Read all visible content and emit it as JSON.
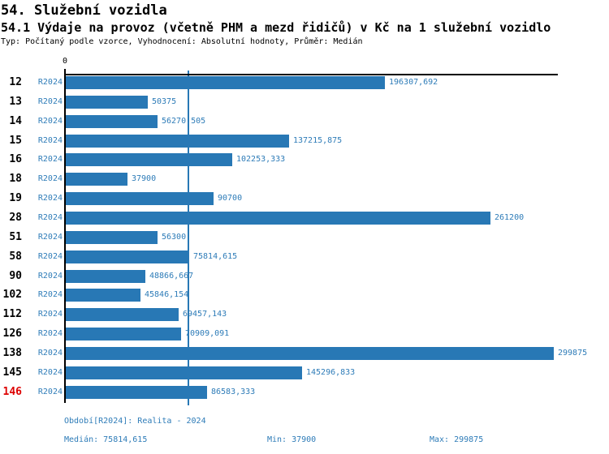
{
  "header": {
    "title": "54. Služební vozidla",
    "subtitle": "54.1 Výdaje na provoz (včetně PHM a mezd řidičů) v Kč na 1 služební vozidlo",
    "meta": "Typ: Počítaný podle vzorce, Vyhodnocení: Absolutní hodnoty, Průměr: Medián"
  },
  "chart_data": {
    "type": "bar",
    "orientation": "horizontal",
    "title": "54.1 Výdaje na provoz (včetně PHM a mezd řidičů) v Kč na 1 služební vozidlo",
    "xlim": [
      0,
      300000
    ],
    "x_tick_labels": [
      "0"
    ],
    "grid": false,
    "median_line_value": 75814.615,
    "series_label": "R2024",
    "categories": [
      "12",
      "13",
      "14",
      "15",
      "16",
      "18",
      "19",
      "28",
      "51",
      "58",
      "90",
      "102",
      "112",
      "126",
      "138",
      "145",
      "146"
    ],
    "values": [
      196307.692,
      50375,
      56270.505,
      137215.875,
      102253.333,
      37900,
      90700,
      261200,
      56300,
      75814.615,
      48866.667,
      45846.154,
      69457.143,
      70909.091,
      299875,
      145296.833,
      86583.333
    ],
    "value_labels": [
      "196307,692",
      "50375",
      "56270,505",
      "137215,875",
      "102253,333",
      "37900",
      "90700",
      "261200",
      "56300",
      "75814,615",
      "48866,667",
      "45846,154",
      "69457,143",
      "70909,091",
      "299875",
      "145296,833",
      "86583,333"
    ],
    "highlighted_categories": [
      "146"
    ],
    "colors": {
      "bar": "#2878b5",
      "label": "#2e7cb8",
      "highlight": "#dd0000",
      "axis": "#000000"
    }
  },
  "axis": {
    "zero_label": "0"
  },
  "footer": {
    "period": "Období[R2024]: Realita - 2024",
    "median": "Medián: 75814,615",
    "min": "Min: 37900",
    "max": "Max: 299875"
  }
}
